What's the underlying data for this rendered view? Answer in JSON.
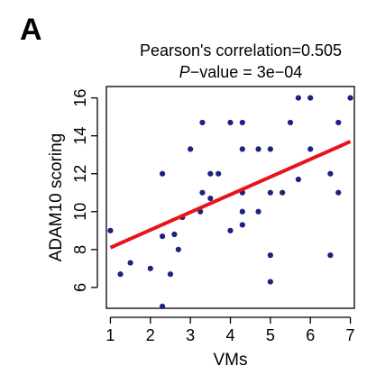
{
  "panel_label": "A",
  "chart_data": {
    "type": "scatter",
    "title": "Pearson's correlation=0.505",
    "subtitle_italic": "P",
    "subtitle_rest": "−value = 3e−04",
    "xlabel": "VMs",
    "ylabel": "ADAM10 scoring",
    "xlim": [
      0.9,
      7.1
    ],
    "ylim": [
      4.9,
      16.6
    ],
    "xticks": [
      1,
      2,
      3,
      4,
      5,
      6,
      7
    ],
    "yticks": [
      6,
      8,
      10,
      12,
      14,
      16
    ],
    "grid": false,
    "point_color": "#1a237e",
    "line_color": "#e8141c",
    "regression_line": {
      "x": [
        1,
        7
      ],
      "y": [
        8.1,
        13.7
      ]
    },
    "points": [
      {
        "x": 1.0,
        "y": 9.0
      },
      {
        "x": 1.25,
        "y": 6.7
      },
      {
        "x": 1.5,
        "y": 7.3
      },
      {
        "x": 2.0,
        "y": 7.0
      },
      {
        "x": 2.3,
        "y": 12.0
      },
      {
        "x": 2.3,
        "y": 8.7
      },
      {
        "x": 2.3,
        "y": 5.0
      },
      {
        "x": 2.5,
        "y": 6.7
      },
      {
        "x": 2.6,
        "y": 8.8
      },
      {
        "x": 2.7,
        "y": 8.0
      },
      {
        "x": 2.8,
        "y": 9.7
      },
      {
        "x": 3.0,
        "y": 13.3
      },
      {
        "x": 3.25,
        "y": 10.0
      },
      {
        "x": 3.3,
        "y": 14.7
      },
      {
        "x": 3.3,
        "y": 11.0
      },
      {
        "x": 3.5,
        "y": 12.0
      },
      {
        "x": 3.5,
        "y": 10.7
      },
      {
        "x": 3.7,
        "y": 12.0
      },
      {
        "x": 4.0,
        "y": 14.7
      },
      {
        "x": 4.0,
        "y": 9.0
      },
      {
        "x": 4.3,
        "y": 14.7
      },
      {
        "x": 4.3,
        "y": 13.3
      },
      {
        "x": 4.3,
        "y": 11.0
      },
      {
        "x": 4.3,
        "y": 10.0
      },
      {
        "x": 4.3,
        "y": 9.3
      },
      {
        "x": 4.7,
        "y": 13.3
      },
      {
        "x": 4.7,
        "y": 10.0
      },
      {
        "x": 5.0,
        "y": 13.3
      },
      {
        "x": 5.0,
        "y": 11.0
      },
      {
        "x": 5.0,
        "y": 7.7
      },
      {
        "x": 5.0,
        "y": 6.3
      },
      {
        "x": 5.3,
        "y": 11.0
      },
      {
        "x": 5.5,
        "y": 14.7
      },
      {
        "x": 5.7,
        "y": 16.0
      },
      {
        "x": 5.7,
        "y": 11.7
      },
      {
        "x": 6.0,
        "y": 16.0
      },
      {
        "x": 6.0,
        "y": 13.3
      },
      {
        "x": 6.5,
        "y": 12.0
      },
      {
        "x": 6.5,
        "y": 7.7
      },
      {
        "x": 6.7,
        "y": 14.7
      },
      {
        "x": 6.7,
        "y": 11.0
      },
      {
        "x": 7.0,
        "y": 16.0
      }
    ]
  }
}
